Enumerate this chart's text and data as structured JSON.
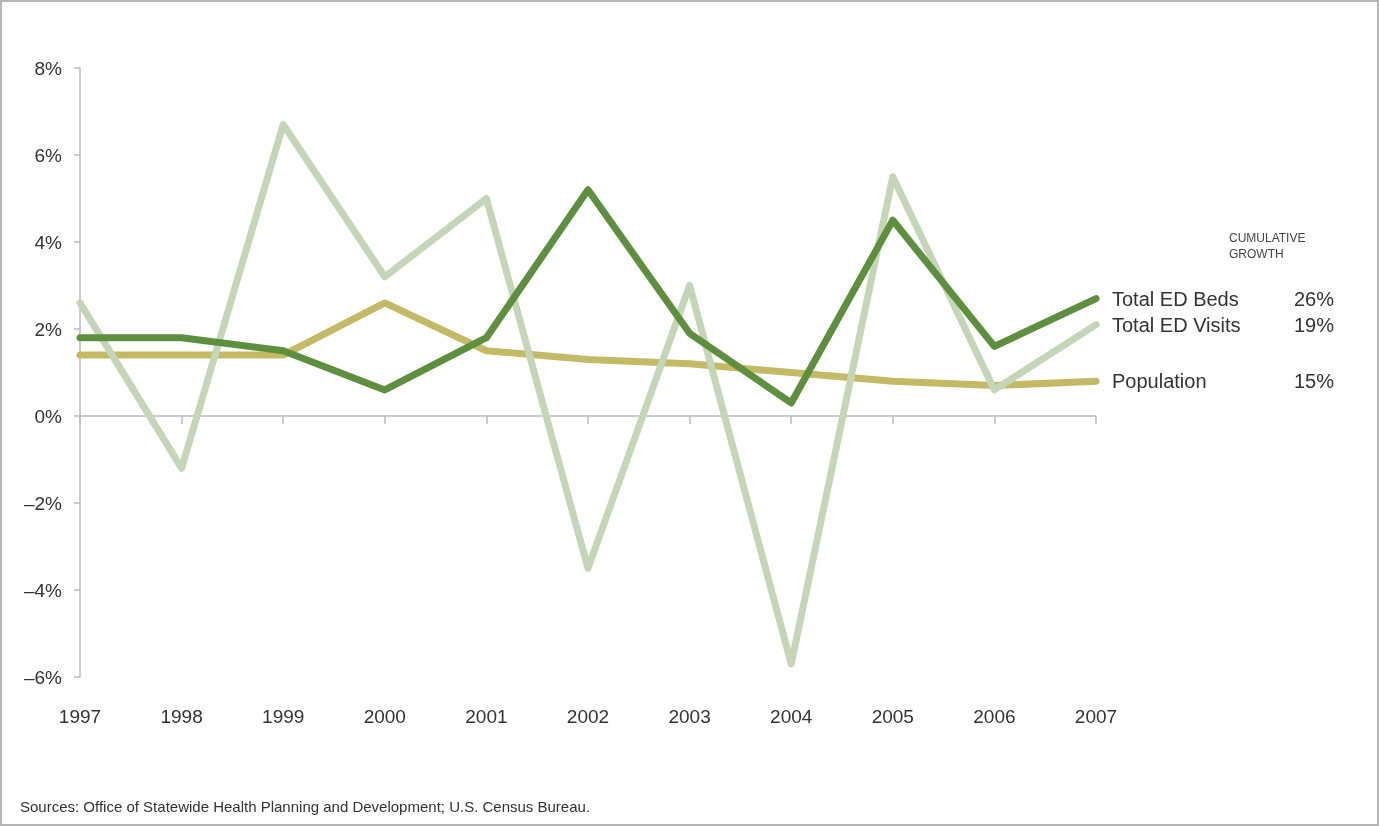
{
  "chart_data": {
    "type": "line",
    "categories": [
      "1997",
      "1998",
      "1999",
      "2000",
      "2001",
      "2002",
      "2003",
      "2004",
      "2005",
      "2006",
      "2007"
    ],
    "series": [
      {
        "name": "Total ED Beds",
        "color": "#5e8f3e",
        "values": [
          1.8,
          1.8,
          1.5,
          0.6,
          1.8,
          5.2,
          1.9,
          0.3,
          4.5,
          1.6,
          2.7
        ]
      },
      {
        "name": "Total ED Visits",
        "color": "#c5d6b8",
        "values": [
          2.6,
          -1.2,
          6.7,
          3.2,
          5.0,
          -3.5,
          3.0,
          -5.7,
          5.5,
          0.6,
          2.1
        ]
      },
      {
        "name": "Population",
        "color": "#c4b964",
        "values": [
          1.4,
          1.4,
          1.4,
          2.6,
          1.5,
          1.3,
          1.2,
          1.0,
          0.8,
          0.7,
          0.8
        ]
      }
    ],
    "ylim": [
      -6,
      8
    ],
    "yticks": [
      {
        "value": -6,
        "label": "–6%"
      },
      {
        "value": -4,
        "label": "–4%"
      },
      {
        "value": -2,
        "label": "–2%"
      },
      {
        "value": 0,
        "label": "0%"
      },
      {
        "value": 2,
        "label": "2%"
      },
      {
        "value": 4,
        "label": "4%"
      },
      {
        "value": 6,
        "label": "6%"
      },
      {
        "value": 8,
        "label": "8%"
      }
    ],
    "legend_title": "CUMULATIVE GROWTH",
    "annotations": [
      "Sources: Office of Statewide Health Planning and Development; U.S. Census Bureau.",
      "26%",
      "19%",
      "15%"
    ],
    "ref_lines": [
      {
        "axis": "y",
        "value": 0,
        "color": "#bbbbbb",
        "line_style": "solid"
      }
    ],
    "grid": false,
    "marker": "none",
    "line_style": "solid",
    "legend": "right"
  }
}
